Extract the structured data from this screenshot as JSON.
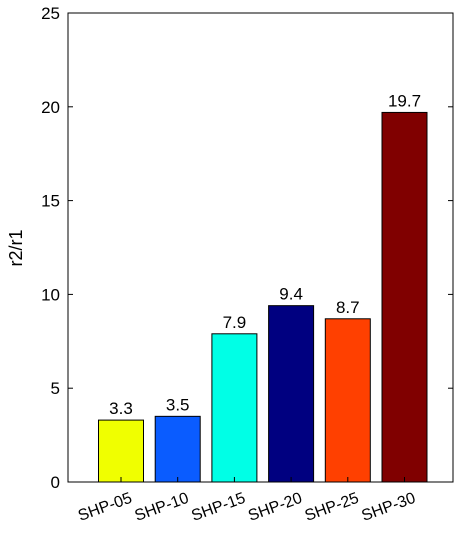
{
  "chart_data": {
    "type": "bar",
    "title": "",
    "xlabel": "",
    "ylabel": "r2/r1",
    "categories": [
      "SHP-05",
      "SHP-10",
      "SHP-15",
      "SHP-20",
      "SHP-25",
      "SHP-30"
    ],
    "values": [
      3.3,
      3.5,
      7.9,
      9.4,
      8.7,
      19.7
    ],
    "data_labels": [
      "3.3",
      "3.5",
      "7.9",
      "9.4",
      "8.7",
      "19.7"
    ],
    "bar_colors": [
      "#f0ff00",
      "#0a5cff",
      "#00ffe6",
      "#000080",
      "#ff4000",
      "#800000"
    ],
    "ylim": [
      0,
      25
    ],
    "yticks": [
      0,
      5,
      10,
      15,
      20,
      25
    ],
    "ytick_labels": [
      "0",
      "5",
      "10",
      "15",
      "20",
      "25"
    ],
    "grid": false,
    "legend": "none"
  }
}
